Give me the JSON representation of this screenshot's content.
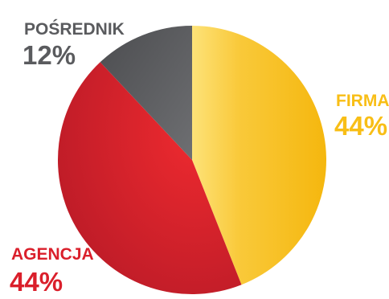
{
  "chart_data": {
    "type": "pie",
    "slices": [
      {
        "label": "FIRMA",
        "value": 44,
        "value_label": "44%",
        "color": "#F8BE16"
      },
      {
        "label": "AGENCJA",
        "value": 44,
        "value_label": "44%",
        "color": "#DA1F2B"
      },
      {
        "label": "POŚREDNIK",
        "value": 12,
        "value_label": "12%",
        "color": "#5A5B5E"
      }
    ],
    "start": "12 o'clock",
    "direction": "clockwise",
    "legend": "none"
  }
}
